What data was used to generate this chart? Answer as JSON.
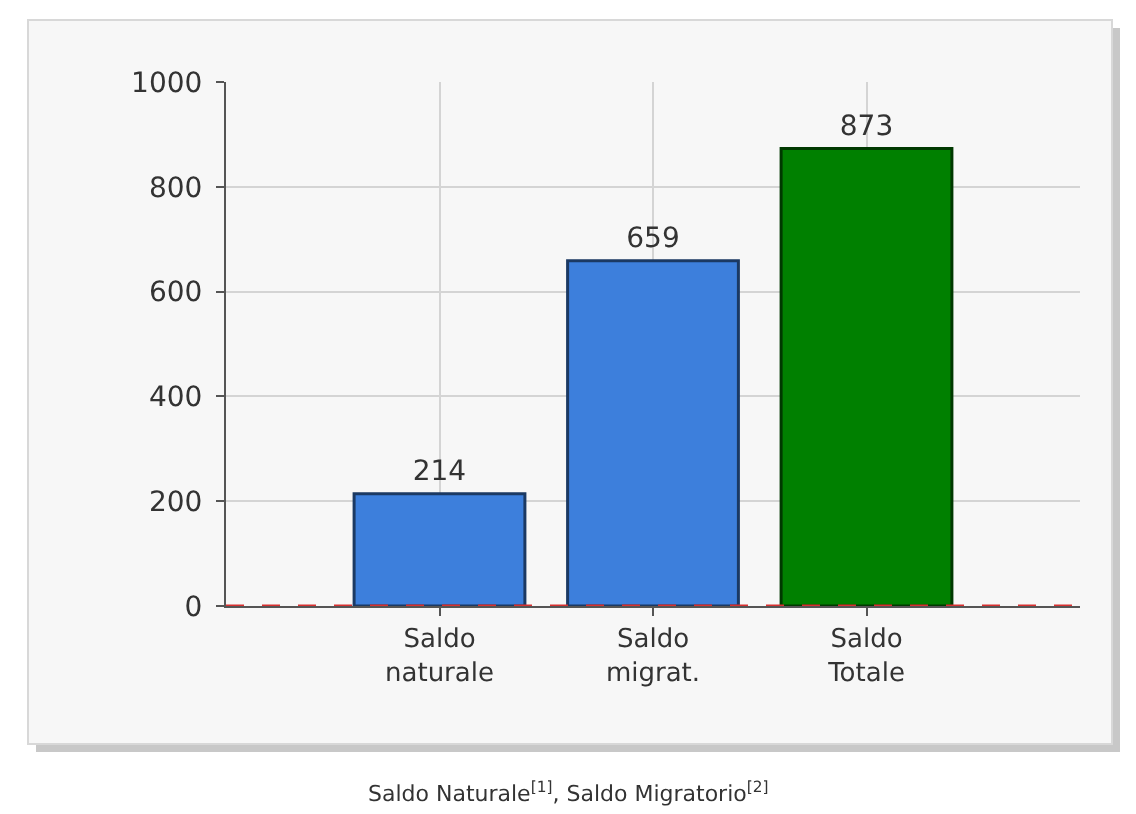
{
  "chart_data": {
    "type": "bar",
    "categories": [
      "Saldo naturale",
      "Saldo migrat.",
      "Saldo Totale"
    ],
    "values": [
      214,
      659,
      873
    ],
    "colors": [
      "#3d7fdc",
      "#3d7fdc",
      "#008000"
    ],
    "ylim": [
      0,
      1000
    ],
    "yticks": [
      0,
      200,
      400,
      600,
      800,
      1000
    ],
    "grid": true,
    "data_labels": true,
    "ref_lines": [
      {
        "axis": "y",
        "value": 0,
        "color": "#d83030",
        "line_style": "dashed"
      }
    ],
    "annotations": [
      "Saldo Naturale$^{[1]}$, Saldo Migratorio$^{[2]}$"
    ]
  }
}
